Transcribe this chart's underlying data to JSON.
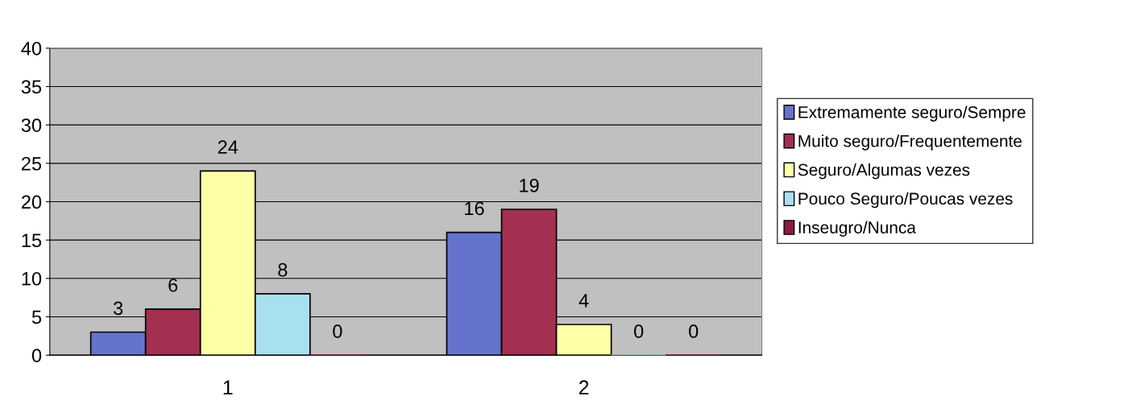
{
  "chart_data": {
    "type": "bar",
    "categories": [
      "1",
      "2"
    ],
    "series": [
      {
        "name": "Extremamente seguro/Sempre",
        "color": "#6673cc",
        "values": [
          3,
          16
        ]
      },
      {
        "name": "Muito seguro/Frequentemente",
        "color": "#a33050",
        "values": [
          6,
          19
        ]
      },
      {
        "name": "Seguro/Algumas vezes",
        "color": "#ffffa8",
        "values": [
          24,
          4
        ]
      },
      {
        "name": "Pouco Seguro/Poucas vezes",
        "color": "#a8e0f0",
        "values": [
          8,
          0
        ]
      },
      {
        "name": "Inseugro/Nunca",
        "color": "#8a1c40",
        "values": [
          0,
          0
        ]
      }
    ],
    "ylim": [
      0,
      40
    ],
    "yticks": [
      0,
      5,
      10,
      15,
      20,
      25,
      30,
      35,
      40
    ],
    "grid": "y",
    "legend": "right",
    "data_labels": true
  }
}
